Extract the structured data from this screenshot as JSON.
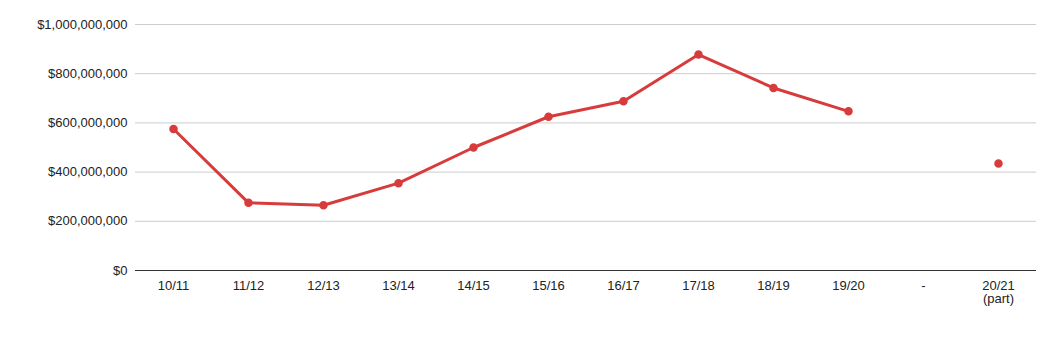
{
  "chart_data": {
    "type": "line",
    "categories": [
      "10/11",
      "11/12",
      "12/13",
      "13/14",
      "14/15",
      "15/16",
      "16/17",
      "17/18",
      "18/19",
      "19/20",
      "-",
      "20/21\n(part)"
    ],
    "values": [
      575000000,
      275000000,
      265000000,
      355000000,
      500000000,
      625000000,
      688000000,
      878000000,
      742000000,
      647000000,
      null,
      435000000
    ],
    "color": "#d83b3b",
    "marker": "circle",
    "ylim": [
      0,
      1000000000
    ],
    "yticks": [
      {
        "value": 0,
        "label": "$0"
      },
      {
        "value": 200000000,
        "label": "$200,000,000"
      },
      {
        "value": 400000000,
        "label": "$400,000,000"
      },
      {
        "value": 600000000,
        "label": "$600,000,000"
      },
      {
        "value": 800000000,
        "label": "$800,000,000"
      },
      {
        "value": 1000000000,
        "label": "$1,000,000,000"
      }
    ],
    "grid": true
  }
}
